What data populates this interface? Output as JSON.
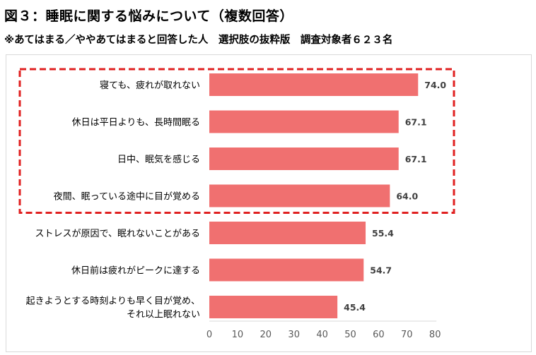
{
  "header": {
    "title": "図３：睡眠に関する悩みについて（複数回答）",
    "subtitle": "※あてはまる／ややあてはまると回答した人　選択肢の抜粋版　調査対象者６２３名"
  },
  "colors": {
    "bar": "#f07070",
    "highlight_border": "#e02020",
    "axis_line": "#d9d9d9",
    "text": "#000000",
    "label": "#404040",
    "tick": "#595959"
  },
  "chart_data": {
    "type": "bar",
    "orientation": "horizontal",
    "title": "図３：睡眠に関する悩みについて（複数回答）",
    "categories": [
      [
        "寝ても、疲れが取れない"
      ],
      [
        "休日は平日よりも、長時間眠る"
      ],
      [
        "日中、眠気を感じる"
      ],
      [
        "夜間、眠っている途中に目が覚める"
      ],
      [
        "ストレスが原因で、眠れないことがある"
      ],
      [
        "休日前は疲れがピークに達する"
      ],
      [
        "起きようとする時刻よりも早く目が覚め、",
        "それ以上眠れない"
      ]
    ],
    "values": [
      74.0,
      67.1,
      67.1,
      64.0,
      55.4,
      54.7,
      45.4
    ],
    "value_labels": [
      "74.0",
      "67.1",
      "67.1",
      "64.0",
      "55.4",
      "54.7",
      "45.4"
    ],
    "xlim": [
      0,
      80
    ],
    "xticks": [
      0,
      10,
      20,
      30,
      40,
      50,
      60,
      70,
      80
    ],
    "xlabel": "",
    "ylabel": "",
    "grid": false,
    "highlighted_categories": [
      0,
      1,
      2,
      3
    ]
  }
}
